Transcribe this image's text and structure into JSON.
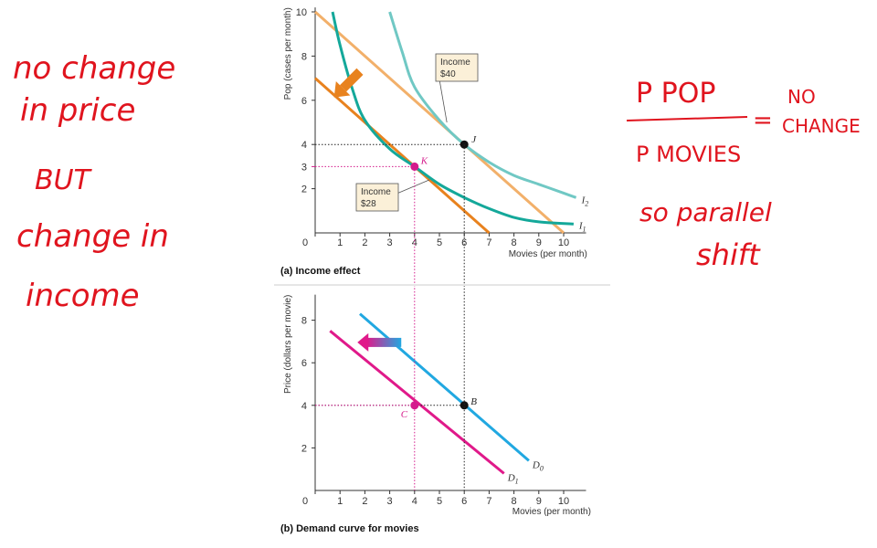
{
  "colors": {
    "budget_40": "#f2b06a",
    "budget_28": "#e8821e",
    "indiff_i1": "#14a89a",
    "indiff_i2": "#70c8c4",
    "demand_d0": "#21a8e1",
    "demand_d1": "#e0198a",
    "guide_black": "#222222",
    "guide_magenta": "#d41b8c",
    "handwriting": "#e0141e",
    "label_box": "#fbf0d8"
  },
  "handwritten_left": [
    "no change",
    "in price",
    "BUT",
    "change in",
    "income"
  ],
  "handwritten_right": {
    "numerator": "P POP",
    "denominator": "P MOVIES",
    "equals": "=",
    "result_line1": "NO",
    "result_line2": "CHANGE",
    "line3": "so parallel",
    "line4": "shift"
  },
  "chart_data": [
    {
      "type": "line",
      "caption": "(a) Income effect",
      "xlabel": "Movies (per month)",
      "ylabel": "Pop (cases per month)",
      "xlim": [
        0,
        11
      ],
      "ylim": [
        0,
        10
      ],
      "xticks": [
        "0",
        "1",
        "2",
        "3",
        "4",
        "5",
        "6",
        "7",
        "8",
        "9",
        "10"
      ],
      "yticks": [
        "2",
        "4",
        "6",
        "8",
        "10"
      ],
      "highlight_y_tick": "3",
      "series": [
        {
          "kind": "budget line",
          "points": [
            [
              0,
              10
            ],
            [
              10,
              0
            ]
          ]
        },
        {
          "kind": "budget line",
          "points": [
            [
              0,
              7
            ],
            [
              7,
              0
            ]
          ]
        },
        {
          "name": "I2",
          "kind": "indifference curve",
          "points": [
            [
              3,
              10
            ],
            [
              3.5,
              8.2
            ],
            [
              4,
              6.6
            ],
            [
              5,
              5.1
            ],
            [
              6,
              4
            ],
            [
              7,
              3.2
            ],
            [
              8,
              2.6
            ],
            [
              9,
              2.2
            ],
            [
              10,
              1.8
            ],
            [
              10.5,
              1.6
            ]
          ]
        },
        {
          "name": "I1",
          "kind": "indifference curve",
          "points": [
            [
              0.7,
              10
            ],
            [
              1,
              8.5
            ],
            [
              1.5,
              6.5
            ],
            [
              2,
              5.1
            ],
            [
              3,
              3.8
            ],
            [
              4,
              3
            ],
            [
              5,
              2.2
            ],
            [
              6,
              1.6
            ],
            [
              7,
              1.1
            ],
            [
              8,
              0.7
            ],
            [
              9,
              0.5
            ],
            [
              10.4,
              0.4
            ]
          ]
        }
      ],
      "points": [
        {
          "label": "J",
          "x": 6,
          "y": 4
        },
        {
          "label": "K",
          "x": 4,
          "y": 3
        }
      ],
      "annotations": [
        {
          "line1": "Income",
          "line2": "$40",
          "points_to": [
            5.3,
            5
          ]
        },
        {
          "line1": "Income",
          "line2": "$28",
          "points_to": [
            4.6,
            2.4
          ]
        }
      ]
    },
    {
      "type": "line",
      "caption": "(b) Demand curve for movies",
      "xlabel": "Movies (per month)",
      "ylabel": "Price (dollars per movie)",
      "xlim": [
        0,
        11
      ],
      "ylim": [
        0,
        9
      ],
      "xticks": [
        "0",
        "1",
        "2",
        "3",
        "4",
        "5",
        "6",
        "7",
        "8",
        "9",
        "10"
      ],
      "yticks": [
        "2",
        "4",
        "6",
        "8"
      ],
      "highlight_y_tick": "4",
      "series": [
        {
          "name": "D0",
          "points": [
            [
              1.8,
              8.3
            ],
            [
              8.6,
              1.4
            ]
          ]
        },
        {
          "name": "D1",
          "points": [
            [
              0.6,
              7.5
            ],
            [
              7.6,
              0.8
            ]
          ]
        }
      ],
      "points": [
        {
          "label": "B",
          "x": 6,
          "y": 4
        },
        {
          "label": "C",
          "x": 4,
          "y": 4
        }
      ]
    }
  ]
}
